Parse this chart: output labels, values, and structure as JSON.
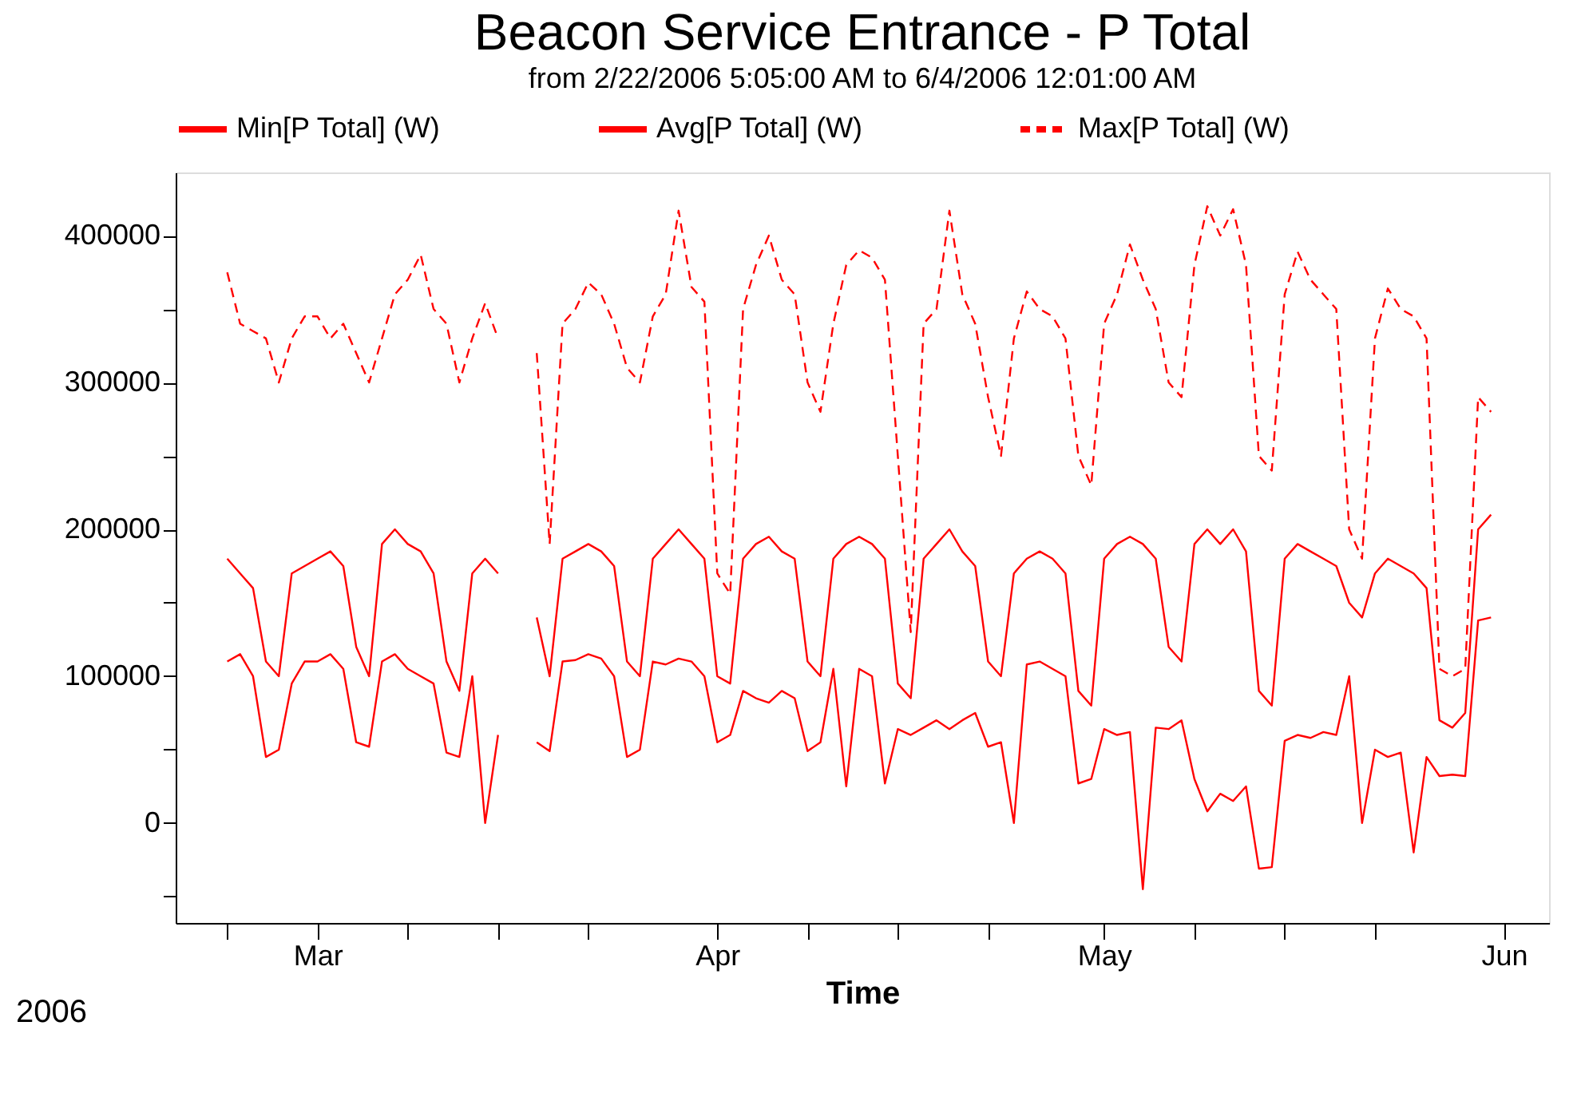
{
  "chart_data": {
    "type": "line",
    "title": "Beacon Service Entrance - P Total",
    "subtitle": "from 2/22/2006 5:05:00 AM to 6/4/2006 12:01:00 AM",
    "xlabel": "Time",
    "annotations": [
      "2006"
    ],
    "x": [
      "2006-02-22",
      "2006-02-23",
      "2006-02-24",
      "2006-02-25",
      "2006-02-26",
      "2006-02-27",
      "2006-02-28",
      "2006-03-01",
      "2006-03-02",
      "2006-03-03",
      "2006-03-04",
      "2006-03-05",
      "2006-03-06",
      "2006-03-07",
      "2006-03-08",
      "2006-03-09",
      "2006-03-10",
      "2006-03-11",
      "2006-03-12",
      "2006-03-13",
      "2006-03-14",
      "2006-03-15",
      "2006-03-16",
      "2006-03-17",
      "2006-03-18",
      "2006-03-19",
      "2006-03-20",
      "2006-03-21",
      "2006-03-22",
      "2006-03-23",
      "2006-03-24",
      "2006-03-25",
      "2006-03-26",
      "2006-03-27",
      "2006-03-28",
      "2006-03-29",
      "2006-03-30",
      "2006-03-31",
      "2006-04-01",
      "2006-04-02",
      "2006-04-03",
      "2006-04-04",
      "2006-04-05",
      "2006-04-06",
      "2006-04-07",
      "2006-04-08",
      "2006-04-09",
      "2006-04-10",
      "2006-04-11",
      "2006-04-12",
      "2006-04-13",
      "2006-04-14",
      "2006-04-15",
      "2006-04-16",
      "2006-04-17",
      "2006-04-18",
      "2006-04-19",
      "2006-04-20",
      "2006-04-21",
      "2006-04-22",
      "2006-04-23",
      "2006-04-24",
      "2006-04-25",
      "2006-04-26",
      "2006-04-27",
      "2006-04-28",
      "2006-04-29",
      "2006-04-30",
      "2006-05-01",
      "2006-05-02",
      "2006-05-03",
      "2006-05-04",
      "2006-05-05",
      "2006-05-06",
      "2006-05-07",
      "2006-05-08",
      "2006-05-09",
      "2006-05-10",
      "2006-05-11",
      "2006-05-12",
      "2006-05-13",
      "2006-05-14",
      "2006-05-15",
      "2006-05-16",
      "2006-05-17",
      "2006-05-18",
      "2006-05-19",
      "2006-05-20",
      "2006-05-21",
      "2006-05-22",
      "2006-05-23",
      "2006-05-24",
      "2006-05-25",
      "2006-05-26",
      "2006-05-27",
      "2006-05-28",
      "2006-05-29",
      "2006-05-30",
      "2006-05-31"
    ],
    "series": [
      {
        "name": "Min[P Total] (W)",
        "color": "#ff0000",
        "line_style": "solid",
        "values": [
          110000,
          115000,
          100000,
          45000,
          50000,
          95000,
          110000,
          110000,
          115000,
          105000,
          55000,
          52000,
          110000,
          115000,
          105000,
          100000,
          95000,
          48000,
          45000,
          100000,
          0,
          60000,
          null,
          null,
          55000,
          49000,
          110000,
          111000,
          115000,
          112000,
          100000,
          45000,
          50000,
          110000,
          108000,
          112000,
          110000,
          100000,
          55000,
          60000,
          90000,
          85000,
          82000,
          90000,
          85000,
          49000,
          55000,
          105000,
          25000,
          105000,
          100000,
          27000,
          64000,
          60000,
          65000,
          70000,
          64000,
          70000,
          75000,
          52000,
          55000,
          0,
          108000,
          110000,
          105000,
          100000,
          27000,
          30000,
          64000,
          60000,
          62000,
          -45000,
          65000,
          64000,
          70000,
          30000,
          8000,
          20000,
          15000,
          25000,
          -31000,
          -30000,
          56000,
          60000,
          58000,
          62000,
          60000,
          100000,
          0,
          50000,
          45000,
          48000,
          -20000,
          45000,
          32000,
          33000,
          32000,
          138000,
          140000
        ]
      },
      {
        "name": "Avg[P Total] (W)",
        "color": "#ff0000",
        "line_style": "solid",
        "values": [
          180000,
          170000,
          160000,
          110000,
          100000,
          170000,
          175000,
          180000,
          185000,
          175000,
          120000,
          100000,
          190000,
          200000,
          190000,
          185000,
          170000,
          110000,
          90000,
          170000,
          180000,
          170000,
          null,
          null,
          140000,
          100000,
          180000,
          185000,
          190000,
          185000,
          175000,
          110000,
          100000,
          180000,
          190000,
          200000,
          190000,
          180000,
          100000,
          95000,
          180000,
          190000,
          195000,
          185000,
          180000,
          110000,
          100000,
          180000,
          190000,
          195000,
          190000,
          180000,
          95000,
          85000,
          180000,
          190000,
          200000,
          185000,
          175000,
          110000,
          100000,
          170000,
          180000,
          185000,
          180000,
          170000,
          90000,
          80000,
          180000,
          190000,
          195000,
          190000,
          180000,
          120000,
          110000,
          190000,
          200000,
          190000,
          200000,
          185000,
          90000,
          80000,
          180000,
          190000,
          185000,
          180000,
          175000,
          150000,
          140000,
          170000,
          180000,
          175000,
          170000,
          160000,
          70000,
          65000,
          75000,
          200000,
          210000
        ]
      },
      {
        "name": "Max[P Total] (W)",
        "color": "#ff0000",
        "line_style": "dashed",
        "values": [
          375000,
          340000,
          335000,
          330000,
          300000,
          330000,
          345000,
          345000,
          330000,
          340000,
          320000,
          300000,
          330000,
          360000,
          370000,
          387000,
          350000,
          340000,
          300000,
          330000,
          354000,
          330000,
          null,
          null,
          320000,
          190000,
          340000,
          350000,
          368000,
          360000,
          340000,
          310000,
          300000,
          345000,
          360000,
          417000,
          365000,
          355000,
          170000,
          156000,
          350000,
          380000,
          400000,
          370000,
          360000,
          300000,
          280000,
          340000,
          380000,
          390000,
          385000,
          370000,
          250000,
          130000,
          340000,
          350000,
          417000,
          360000,
          340000,
          290000,
          250000,
          330000,
          362000,
          350000,
          345000,
          330000,
          250000,
          230000,
          340000,
          360000,
          394000,
          370000,
          350000,
          300000,
          290000,
          380000,
          420000,
          400000,
          418000,
          380000,
          250000,
          240000,
          360000,
          389000,
          370000,
          360000,
          350000,
          200000,
          180000,
          330000,
          364000,
          350000,
          345000,
          330000,
          105000,
          100000,
          105000,
          290000,
          280000
        ]
      }
    ],
    "xlim": [
      "2006-02-18",
      "2006-06-04T12:00"
    ],
    "xticks": [
      {
        "value": "2006-02-22",
        "label": null
      },
      {
        "value": "2006-03-01",
        "label": "Mar"
      },
      {
        "value": "2006-03-08",
        "label": null
      },
      {
        "value": "2006-03-15",
        "label": null
      },
      {
        "value": "2006-03-22",
        "label": null
      },
      {
        "value": "2006-04-01",
        "label": "Apr"
      },
      {
        "value": "2006-04-08",
        "label": null
      },
      {
        "value": "2006-04-15",
        "label": null
      },
      {
        "value": "2006-04-22",
        "label": null
      },
      {
        "value": "2006-05-01",
        "label": "May"
      },
      {
        "value": "2006-05-08",
        "label": null
      },
      {
        "value": "2006-05-15",
        "label": null
      },
      {
        "value": "2006-05-22",
        "label": null
      },
      {
        "value": "2006-06-01",
        "label": "Jun"
      }
    ],
    "ylim": [
      -68000,
      443000
    ],
    "yticks": [
      {
        "value": -50000,
        "label": null
      },
      0,
      {
        "value": 50000,
        "label": null
      },
      100000,
      {
        "value": 150000,
        "label": null
      },
      200000,
      {
        "value": 250000,
        "label": null
      },
      300000,
      {
        "value": 350000,
        "label": null
      },
      400000
    ],
    "grid": false,
    "legend": "top",
    "marker": "none"
  }
}
